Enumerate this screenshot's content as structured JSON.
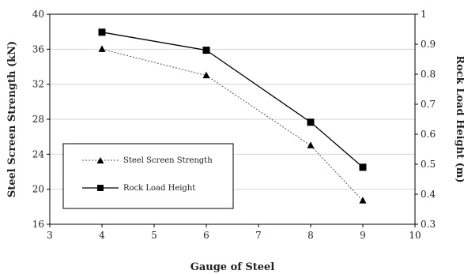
{
  "chart_data": {
    "type": "line",
    "xlabel": "Gauge of Steel",
    "ylabel_left": "Steel Screen Strength (kN)",
    "ylabel_right": "Rock Load Height (m)",
    "xlim": [
      3,
      10
    ],
    "ylim_left": [
      16,
      40
    ],
    "ylim_right": [
      0.3,
      1.0
    ],
    "x_ticks": [
      "3",
      "4",
      "5",
      "6",
      "7",
      "8",
      "9",
      "10"
    ],
    "y_ticks_left": [
      "16",
      "20",
      "24",
      "28",
      "32",
      "36",
      "40"
    ],
    "y_ticks_right": [
      "0.3",
      "0.4",
      "0.5",
      "0.6",
      "0.7",
      "0.8",
      "0.9",
      "1"
    ],
    "grid": "horizontal",
    "legend_position": "left",
    "series": [
      {
        "name": "Steel Screen Strength",
        "axis": "left",
        "marker": "triangle",
        "line_style": "dotted",
        "x": [
          4,
          6,
          8,
          9
        ],
        "y": [
          36,
          33,
          25,
          18.7
        ]
      },
      {
        "name": "Rock Load Height",
        "axis": "right",
        "marker": "square",
        "line_style": "solid",
        "x": [
          4,
          6,
          8,
          9
        ],
        "y": [
          0.94,
          0.88,
          0.64,
          0.49
        ]
      }
    ]
  }
}
